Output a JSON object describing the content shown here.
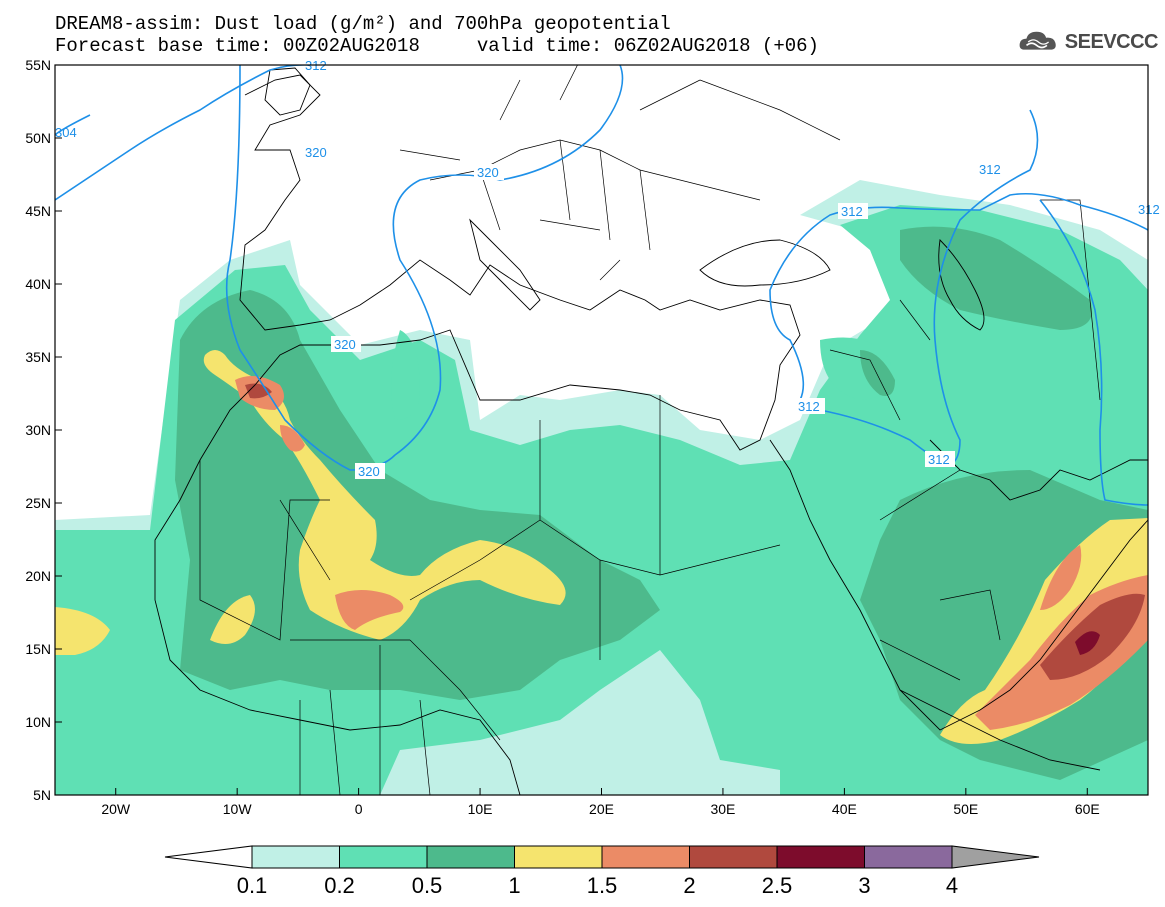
{
  "header": {
    "line1": "DREAM8-assim: Dust load (g/m²) and 700hPa geopotential",
    "line2": "Forecast base time: 00Z02AUG2018     valid time: 06Z02AUG2018 (+06)"
  },
  "logo": {
    "text": "SEEVCCC",
    "icon": "cloud-icon"
  },
  "map": {
    "lon_range": [
      -25,
      65
    ],
    "lat_range": [
      5,
      55
    ],
    "lat_ticks": [
      "55N",
      "50N",
      "45N",
      "40N",
      "35N",
      "30N",
      "25N",
      "20N",
      "15N",
      "10N",
      "5N"
    ],
    "lon_ticks": [
      "20W",
      "10W",
      "0",
      "10E",
      "20E",
      "30E",
      "40E",
      "50E",
      "60E"
    ]
  },
  "contours": {
    "labels": [
      "320",
      "320",
      "320",
      "320",
      "312",
      "312",
      "312",
      "312",
      "312",
      "304",
      "312"
    ]
  },
  "colorbar": {
    "labels": [
      "0.1",
      "0.2",
      "0.5",
      "1",
      "1.5",
      "2",
      "2.5",
      "3",
      "4"
    ],
    "colors": [
      "#c0f0e6",
      "#5fe0b4",
      "#4dba8c",
      "#f5e46e",
      "#eb8b66",
      "#b0493e",
      "#7d0c2c",
      "#8a699d",
      "#a0a0a0"
    ]
  }
}
